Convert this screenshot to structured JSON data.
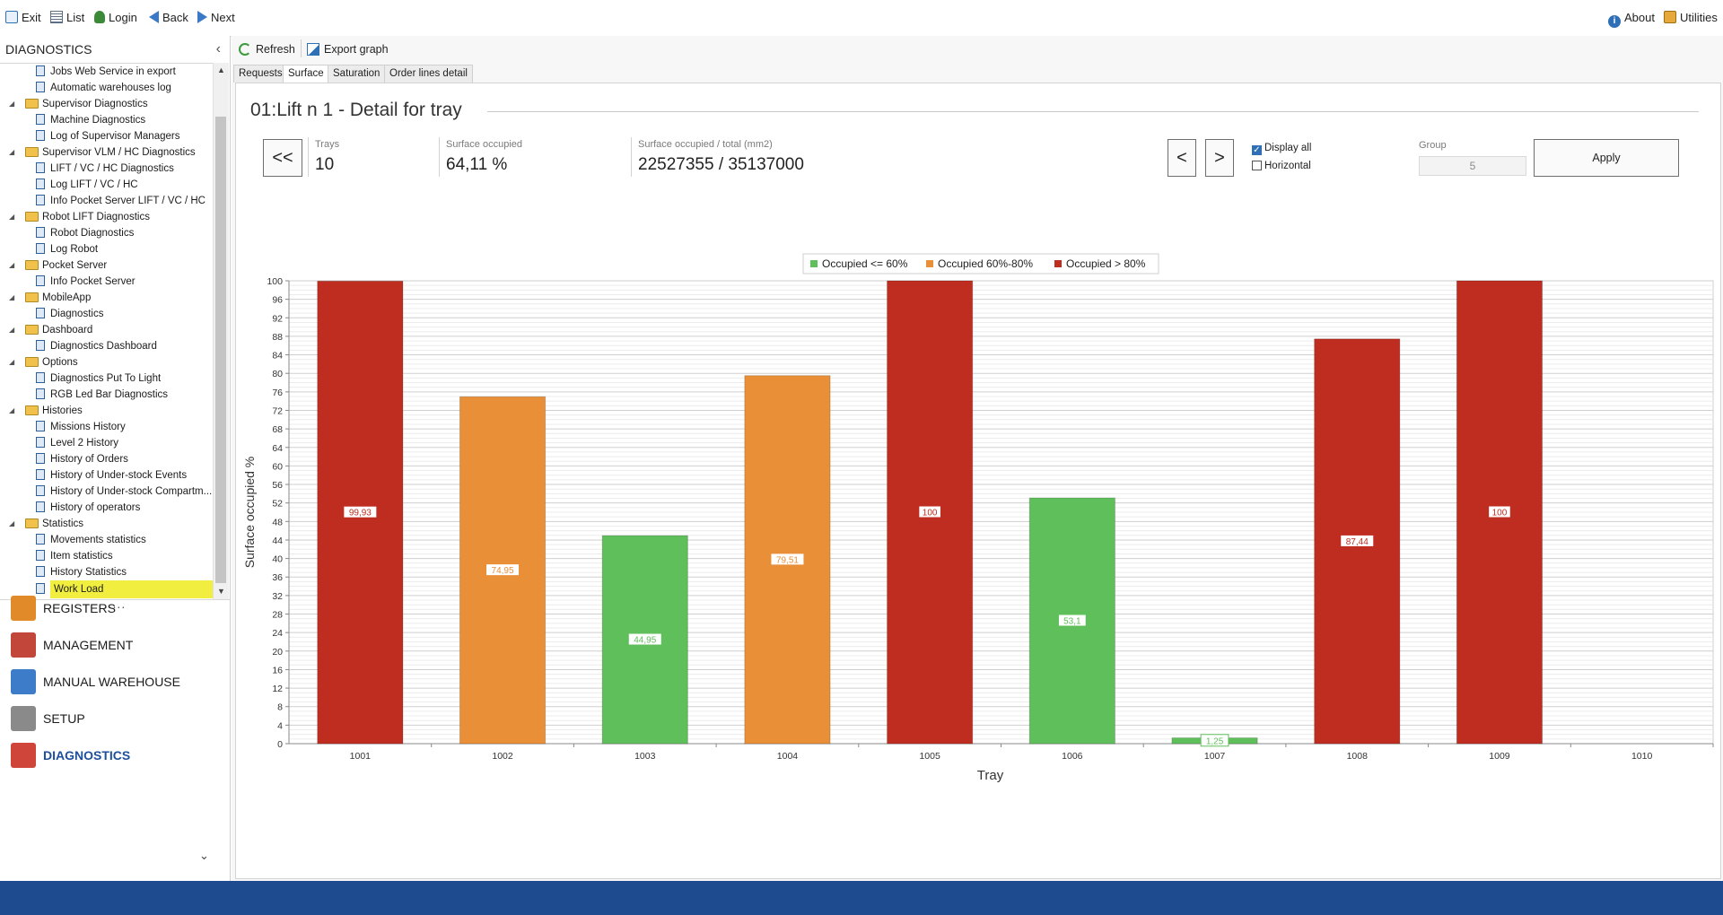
{
  "top_toolbar": {
    "left": [
      {
        "id": "exit",
        "label": "Exit",
        "icon": "exit-icon"
      },
      {
        "id": "list",
        "label": "List",
        "icon": "list-icon"
      },
      {
        "id": "login",
        "label": "Login",
        "icon": "login-icon"
      },
      {
        "id": "back",
        "label": "Back",
        "icon": "back-arrow-icon"
      },
      {
        "id": "next",
        "label": "Next",
        "icon": "next-arrow-icon"
      }
    ],
    "right": [
      {
        "id": "about",
        "label": "About",
        "icon": "info-icon"
      },
      {
        "id": "utilities",
        "label": "Utilities",
        "icon": "utilities-icon"
      }
    ]
  },
  "sidebar": {
    "title": "DIAGNOSTICS",
    "tree": [
      {
        "type": "leaf",
        "label": "Jobs Web Service in export"
      },
      {
        "type": "leaf",
        "label": "Automatic warehouses log"
      },
      {
        "type": "group",
        "label": "Supervisor Diagnostics"
      },
      {
        "type": "leaf",
        "label": "Machine Diagnostics"
      },
      {
        "type": "leaf",
        "label": "Log of Supervisor Managers"
      },
      {
        "type": "group",
        "label": "Supervisor VLM / HC Diagnostics"
      },
      {
        "type": "leaf",
        "label": "LIFT / VC / HC Diagnostics"
      },
      {
        "type": "leaf",
        "label": "Log LIFT / VC / HC"
      },
      {
        "type": "leaf",
        "label": "Info Pocket Server LIFT / VC / HC"
      },
      {
        "type": "group",
        "label": "Robot LIFT Diagnostics"
      },
      {
        "type": "leaf",
        "label": "Robot Diagnostics"
      },
      {
        "type": "leaf",
        "label": "Log Robot"
      },
      {
        "type": "group",
        "label": "Pocket Server"
      },
      {
        "type": "leaf",
        "label": "Info Pocket Server"
      },
      {
        "type": "group",
        "label": "MobileApp"
      },
      {
        "type": "leaf",
        "label": "Diagnostics"
      },
      {
        "type": "group",
        "label": "Dashboard"
      },
      {
        "type": "leaf",
        "label": "Diagnostics Dashboard"
      },
      {
        "type": "group",
        "label": "Options"
      },
      {
        "type": "leaf",
        "label": "Diagnostics Put To Light"
      },
      {
        "type": "leaf",
        "label": "RGB Led Bar Diagnostics"
      },
      {
        "type": "group",
        "label": "Histories"
      },
      {
        "type": "leaf",
        "label": "Missions History"
      },
      {
        "type": "leaf",
        "label": "Level 2 History"
      },
      {
        "type": "leaf",
        "label": "History of Orders"
      },
      {
        "type": "leaf",
        "label": "History of Under-stock Events"
      },
      {
        "type": "leaf",
        "label": "History of Under-stock Compartm..."
      },
      {
        "type": "leaf",
        "label": "History of operators"
      },
      {
        "type": "group",
        "label": "Statistics"
      },
      {
        "type": "leaf",
        "label": "Movements statistics"
      },
      {
        "type": "leaf",
        "label": "Item statistics"
      },
      {
        "type": "leaf",
        "label": "History Statistics"
      },
      {
        "type": "leaf",
        "label": "Work Load",
        "selected": true
      }
    ],
    "nav": [
      {
        "label": "REGISTERS",
        "icon": "registers-icon",
        "color": "#e08a2a"
      },
      {
        "label": "MANAGEMENT",
        "icon": "calendar-icon",
        "color": "#c2463a"
      },
      {
        "label": "MANUAL WAREHOUSE",
        "icon": "warehouse-grid-icon",
        "color": "#3c7cc9"
      },
      {
        "label": "SETUP",
        "icon": "gears-icon",
        "color": "#8a8a8a"
      },
      {
        "label": "DIAGNOSTICS",
        "icon": "diagnostics-chart-icon",
        "color": "#d0453a",
        "active": true
      }
    ]
  },
  "toolbar": {
    "refresh": "Refresh",
    "export": "Export graph"
  },
  "tabs": [
    "Requests",
    "Surface",
    "Saturation",
    "Order lines detail"
  ],
  "active_tab": "Surface",
  "panel": {
    "title": "01:Lift n 1 - Detail for tray",
    "first_button": "<<",
    "prev_button": "<",
    "next_button": ">",
    "apply_button": "Apply",
    "trays_label": "Trays",
    "trays_value": "10",
    "surface_label": "Surface occupied",
    "surface_value": "64,11 %",
    "total_label": "Surface occupied / total (mm2)",
    "total_value": "22527355 / 35137000",
    "display_all": {
      "label": "Display all",
      "checked": true
    },
    "horizontal": {
      "label": "Horizontal",
      "checked": false
    },
    "group_label": "Group",
    "group_value": "5"
  },
  "chart_data": {
    "type": "bar",
    "xlabel": "Tray",
    "ylabel": "Surface occupied %",
    "ylim": [
      0,
      100
    ],
    "ytick_step": 4,
    "categories": [
      "1001",
      "1002",
      "1003",
      "1004",
      "1005",
      "1006",
      "1007",
      "1008",
      "1009",
      "1010"
    ],
    "values": [
      99.93,
      74.95,
      44.95,
      79.51,
      100,
      53.1,
      1.25,
      87.44,
      100,
      null
    ],
    "value_labels": [
      "99,93",
      "74,95",
      "44,95",
      "79,51",
      "100",
      "53,1",
      "1,25",
      "87,44",
      "100",
      ""
    ],
    "legend": [
      {
        "name": "Occupied <= 60%",
        "color": "#5fbf5a"
      },
      {
        "name": "Occupied 60%-80%",
        "color": "#e98f37"
      },
      {
        "name": "Occupied > 80%",
        "color": "#bf2d20"
      }
    ],
    "legend_position": "top-center",
    "grid": true
  },
  "colors": {
    "low": "#5fbf5a",
    "mid": "#e98f37",
    "high": "#bf2d20",
    "accent": "#1e4b8f",
    "selection": "#f1ee3f"
  }
}
